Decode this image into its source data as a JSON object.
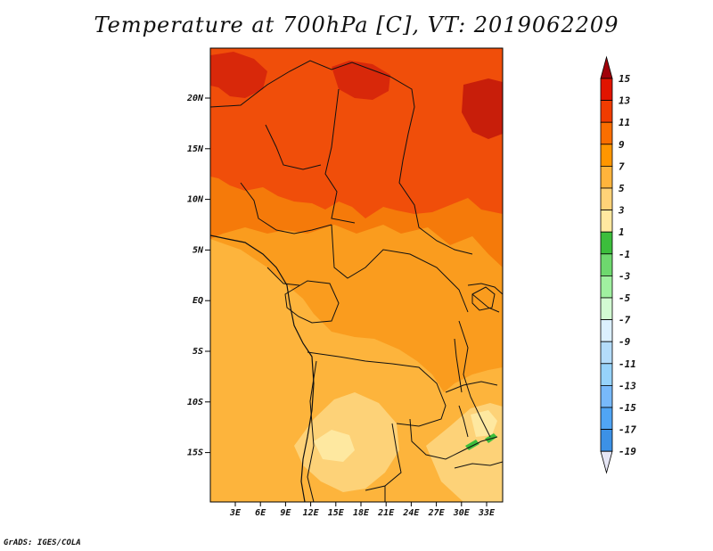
{
  "title": "Temperature at 700hPa [C], VT: 2019062209",
  "footer": "GrADS: IGES/COLA",
  "axes": {
    "lat_labels": [
      "20N",
      "15N",
      "10N",
      "5N",
      "EQ",
      "5S",
      "10S",
      "15S"
    ],
    "lon_labels": [
      "3E",
      "6E",
      "9E",
      "12E",
      "15E",
      "18E",
      "21E",
      "24E",
      "27E",
      "30E",
      "33E"
    ]
  },
  "colorbar": {
    "levels": [
      "15",
      "13",
      "11",
      "9",
      "7",
      "5",
      "3",
      "1",
      "-1",
      "-3",
      "-5",
      "-7",
      "-9",
      "-11",
      "-13",
      "-15",
      "-17",
      "-19"
    ],
    "colors": [
      "#a0000a",
      "#e11400",
      "#f03c00",
      "#fa6e00",
      "#ff9600",
      "#ffb43c",
      "#ffd278",
      "#ffe8a0",
      "#3cbe3c",
      "#6ed86e",
      "#a0f0a0",
      "#d2fad2",
      "#dcf0ff",
      "#b4dcfa",
      "#96d2fa",
      "#78b9fa",
      "#50a5f5",
      "#3c91e6",
      "#1e6ec8",
      "#1450b4",
      "#0a2d8c",
      "#000064",
      "#e6e6f5"
    ]
  }
}
